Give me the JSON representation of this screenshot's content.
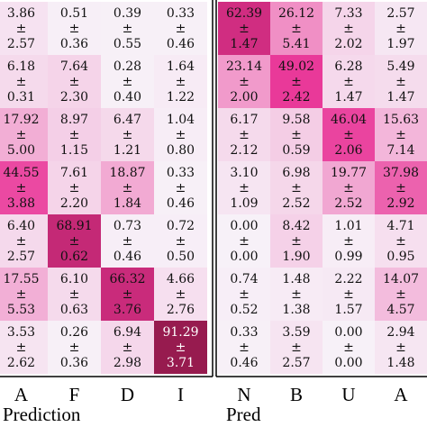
{
  "chart_data": [
    {
      "type": "heatmap",
      "x_label": "Prediction",
      "categories": [
        "A",
        "F",
        "D",
        "I"
      ],
      "separator": "±",
      "colormap": [
        "#f7f1f8",
        "#e93597",
        "#861640"
      ],
      "colorlim": [
        0,
        100
      ],
      "values": [
        [
          3.86,
          0.51,
          0.39,
          0.33
        ],
        [
          6.18,
          7.64,
          0.28,
          1.64
        ],
        [
          17.92,
          8.97,
          6.47,
          1.04
        ],
        [
          44.55,
          7.61,
          18.87,
          0.33
        ],
        [
          6.4,
          68.91,
          0.73,
          0.72
        ],
        [
          17.55,
          6.1,
          66.32,
          4.66
        ],
        [
          3.53,
          0.26,
          6.94,
          91.29
        ]
      ],
      "value_labels": [
        [
          "3.86",
          "0.51",
          "0.39",
          "0.33"
        ],
        [
          "6.18",
          "7.64",
          "0.28",
          "1.64"
        ],
        [
          "17.92",
          "8.97",
          "6.47",
          "1.04"
        ],
        [
          "44.55",
          "7.61",
          "18.87",
          "0.33"
        ],
        [
          "6.40",
          "68.91",
          "0.73",
          "0.72"
        ],
        [
          "17.55",
          "6.10",
          "66.32",
          "4.66"
        ],
        [
          "3.53",
          "0.26",
          "6.94",
          "91.29"
        ]
      ],
      "errors": [
        [
          2.57,
          0.36,
          0.55,
          0.46
        ],
        [
          0.31,
          2.3,
          0.4,
          1.22
        ],
        [
          5.0,
          1.15,
          1.21,
          0.8
        ],
        [
          3.88,
          2.2,
          1.84,
          0.46
        ],
        [
          2.57,
          0.62,
          0.46,
          0.5
        ],
        [
          5.53,
          0.63,
          3.76,
          2.76
        ],
        [
          2.62,
          0.36,
          2.98,
          3.71
        ]
      ],
      "error_labels": [
        [
          "2.57",
          "0.36",
          "0.55",
          "0.46"
        ],
        [
          "0.31",
          "2.30",
          "0.40",
          "1.22"
        ],
        [
          "5.00",
          "1.15",
          "1.21",
          "0.80"
        ],
        [
          "3.88",
          "2.20",
          "1.84",
          "0.46"
        ],
        [
          "2.57",
          "0.62",
          "0.46",
          "0.50"
        ],
        [
          "5.53",
          "0.63",
          "3.76",
          "2.76"
        ],
        [
          "2.62",
          "0.36",
          "2.98",
          "3.71"
        ]
      ]
    },
    {
      "type": "heatmap",
      "x_label": "Pred",
      "categories": [
        "N",
        "B",
        "U",
        "A"
      ],
      "separator": "±",
      "colormap": [
        "#f7f1f8",
        "#e93597",
        "#861640"
      ],
      "colorlim": [
        0,
        100
      ],
      "values": [
        [
          62.39,
          26.12,
          7.33,
          2.57
        ],
        [
          23.14,
          49.02,
          6.28,
          5.49
        ],
        [
          6.17,
          9.58,
          46.04,
          15.63
        ],
        [
          3.1,
          6.98,
          19.77,
          37.98
        ],
        [
          0,
          8.42,
          1.01,
          4.71
        ],
        [
          0.74,
          1.48,
          2.22,
          14.07
        ],
        [
          0.33,
          3.59,
          0,
          2.94
        ]
      ],
      "value_labels": [
        [
          "62.39",
          "26.12",
          "7.33",
          "2.57"
        ],
        [
          "23.14",
          "49.02",
          "6.28",
          "5.49"
        ],
        [
          "6.17",
          "9.58",
          "46.04",
          "15.63"
        ],
        [
          "3.10",
          "6.98",
          "19.77",
          "37.98"
        ],
        [
          "0.00",
          "8.42",
          "1.01",
          "4.71"
        ],
        [
          "0.74",
          "1.48",
          "2.22",
          "14.07"
        ],
        [
          "0.33",
          "3.59",
          "0.00",
          "2.94"
        ]
      ],
      "errors": [
        [
          1.47,
          5.41,
          2.02,
          1.97
        ],
        [
          2.0,
          2.42,
          1.47,
          1.47
        ],
        [
          2.12,
          0.59,
          2.06,
          7.14
        ],
        [
          1.09,
          2.52,
          2.52,
          2.92
        ],
        [
          0,
          1.9,
          0.99,
          0.95
        ],
        [
          0.52,
          1.38,
          1.57,
          4.57
        ],
        [
          0.46,
          2.57,
          0,
          1.48
        ]
      ],
      "error_labels": [
        [
          "1.47",
          "5.41",
          "2.02",
          "1.97"
        ],
        [
          "2.00",
          "2.42",
          "1.47",
          "1.47"
        ],
        [
          "2.12",
          "0.59",
          "2.06",
          "7.14"
        ],
        [
          "1.09",
          "2.52",
          "2.52",
          "2.92"
        ],
        [
          "0.00",
          "1.90",
          "0.99",
          "0.95"
        ],
        [
          "0.52",
          "1.38",
          "1.57",
          "4.57"
        ],
        [
          "0.46",
          "2.57",
          "0.00",
          "1.48"
        ]
      ]
    }
  ]
}
